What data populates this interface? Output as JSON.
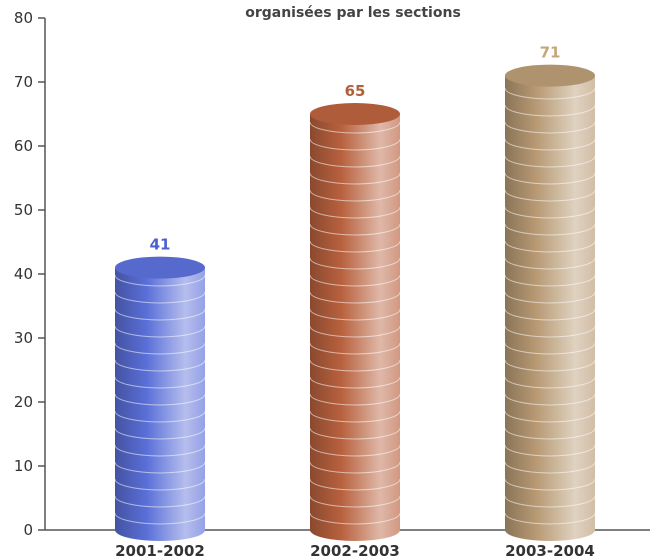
{
  "chart_data": {
    "type": "bar",
    "title": "organisées par les sections",
    "categories": [
      "2001-2002",
      "2002-2003",
      "2003-2004"
    ],
    "values": [
      41,
      65,
      71
    ],
    "ylim": [
      0,
      80
    ],
    "yticks": [
      0,
      10,
      20,
      30,
      40,
      50,
      60,
      70,
      80
    ],
    "xlabel": "",
    "ylabel": "",
    "grid": false,
    "colors": [
      "#5a6fd8",
      "#b8613e",
      "#b89a74"
    ],
    "label_colors": [
      "#4b5fd0",
      "#b0603a",
      "#c5a579"
    ]
  }
}
